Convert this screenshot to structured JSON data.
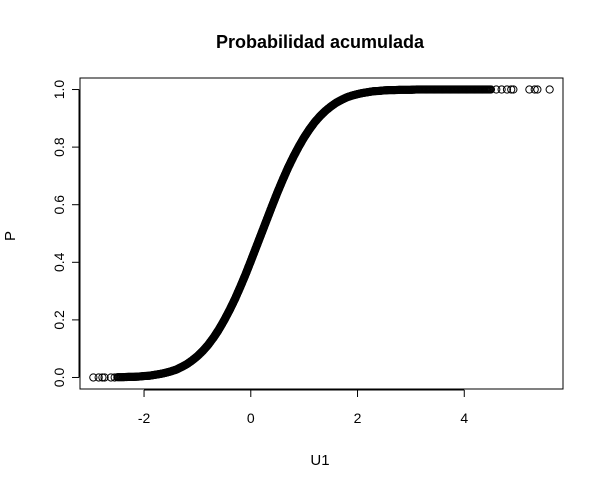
{
  "chart_data": {
    "type": "scatter",
    "title": "Probabilidad acumulada",
    "xlabel": "U1",
    "ylabel": "P",
    "xlim": [
      -3.2,
      5.85
    ],
    "ylim": [
      -0.04,
      1.04
    ],
    "x_ticks": [
      -2,
      0,
      2,
      4
    ],
    "x_tick_labels": [
      "-2",
      "0",
      "2",
      "4"
    ],
    "y_ticks": [
      0.0,
      0.2,
      0.4,
      0.6,
      0.8,
      1.0
    ],
    "y_tick_labels": [
      "0.0",
      "0.2",
      "0.4",
      "0.6",
      "0.8",
      "1.0"
    ],
    "grid": false,
    "legend": "none",
    "marker": "open-circle",
    "marker_color": "#000000",
    "series": [
      {
        "x": [
          -2.95,
          -2.85,
          -2.78,
          -2.74,
          -2.62,
          -2.55,
          -2.5,
          -2.4,
          -2.3,
          -2.2,
          -2.1,
          -2.0,
          -1.9,
          -1.8,
          -1.7,
          -1.6,
          -1.5,
          -1.4,
          -1.3,
          -1.2,
          -1.1,
          -1.0,
          -0.9,
          -0.8,
          -0.7,
          -0.6,
          -0.5,
          -0.4,
          -0.3,
          -0.2,
          -0.1,
          0.0,
          0.1,
          0.2,
          0.3,
          0.4,
          0.5,
          0.6,
          0.7,
          0.8,
          0.9,
          1.0,
          1.1,
          1.2,
          1.3,
          1.4,
          1.5,
          1.6,
          1.7,
          1.8,
          1.9,
          2.0,
          2.1,
          2.2,
          2.3,
          2.4,
          2.5,
          2.6,
          2.7,
          2.8,
          2.9,
          3.0,
          3.1,
          3.2,
          3.3,
          3.4,
          3.5,
          3.6,
          3.7,
          3.8,
          3.9,
          4.0,
          4.1,
          4.2,
          4.3,
          4.4,
          4.5,
          4.6,
          4.7,
          4.8,
          4.88,
          4.92,
          5.22,
          5.32,
          5.37,
          5.6
        ],
        "y": [
          0.0,
          0.0,
          0.0,
          0.0,
          0.0,
          0.0,
          0.001,
          0.001,
          0.002,
          0.002,
          0.003,
          0.005,
          0.006,
          0.009,
          0.012,
          0.016,
          0.021,
          0.027,
          0.036,
          0.046,
          0.059,
          0.074,
          0.092,
          0.113,
          0.138,
          0.166,
          0.198,
          0.233,
          0.271,
          0.313,
          0.357,
          0.404,
          0.452,
          0.5,
          0.548,
          0.596,
          0.643,
          0.687,
          0.729,
          0.767,
          0.802,
          0.834,
          0.862,
          0.887,
          0.908,
          0.926,
          0.941,
          0.954,
          0.964,
          0.973,
          0.979,
          0.984,
          0.988,
          0.991,
          0.994,
          0.995,
          0.997,
          0.998,
          0.998,
          0.999,
          0.999,
          0.999,
          1.0,
          1.0,
          1.0,
          1.0,
          1.0,
          1.0,
          1.0,
          1.0,
          1.0,
          1.0,
          1.0,
          1.0,
          1.0,
          1.0,
          1.0,
          1.0,
          1.0,
          1.0,
          1.0,
          1.0,
          1.0,
          1.0,
          1.0,
          1.0
        ]
      }
    ]
  }
}
